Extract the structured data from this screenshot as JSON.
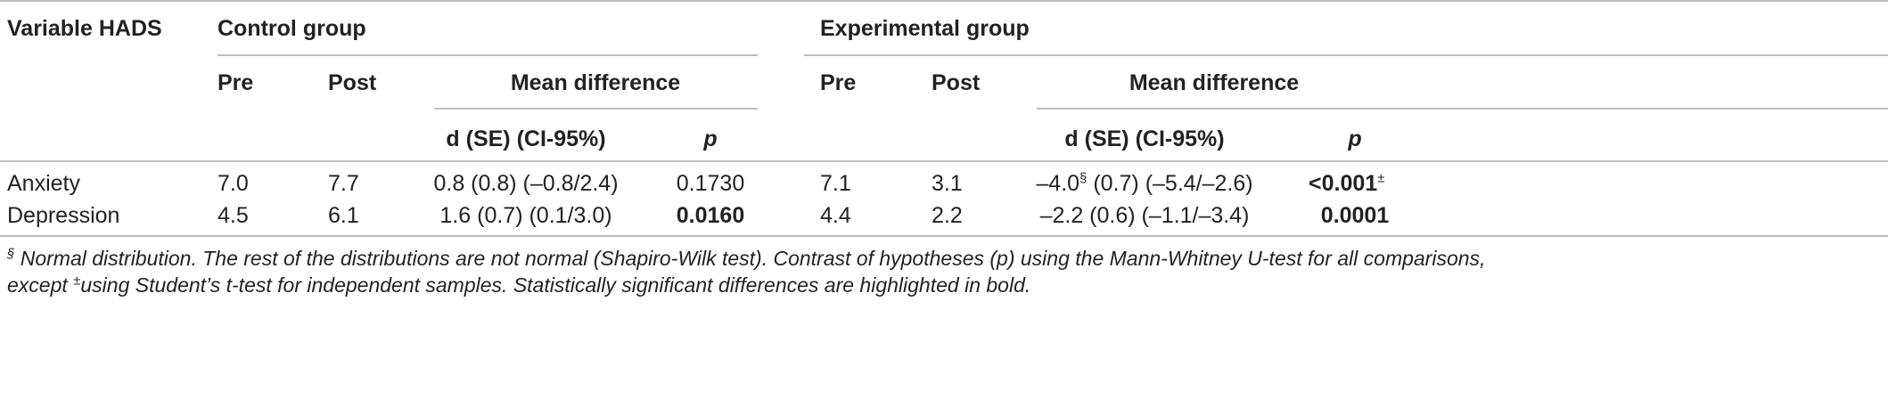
{
  "table": {
    "header": {
      "variable": "Variable HADS",
      "control_group": "Control group",
      "experimental_group": "Experimental group",
      "pre": "Pre",
      "post": "Post",
      "mean_difference": "Mean difference",
      "d_se_ci": "d (SE) (CI-95%)",
      "p": "p"
    },
    "rows": [
      {
        "variable": "Anxiety",
        "control_pre": "7.0",
        "control_post": "7.7",
        "control_d": "0.8 (0.8) (–0.8/2.4)",
        "control_p": "0.1730",
        "exp_pre": "7.1",
        "exp_post": "3.1",
        "exp_d_value": "–4.0",
        "exp_d_mark": "§",
        "exp_d_rest": " (0.7) (–5.4/–2.6)",
        "exp_p_prefix": "<",
        "exp_p_value": "0.001",
        "exp_p_mark": "±"
      },
      {
        "variable": "Depression",
        "control_pre": "4.5",
        "control_post": "6.1",
        "control_d": "1.6 (0.7) (0.1/3.0)",
        "control_p": "0.0160",
        "exp_pre": "4.4",
        "exp_post": "2.2",
        "exp_d": "–2.2 (0.6) (–1.1/–3.4)",
        "exp_p": "0.0001"
      }
    ]
  },
  "footnote": {
    "mark_1": "§",
    "line_1": " Normal distribution. The rest of the distributions are not normal (Shapiro-Wilk test). Contrast of hypotheses (p) using the Mann-Whitney U-test for all comparisons,",
    "line_2_prefix": "except ",
    "mark_2": "±",
    "line_2": "using Student’s t-test for independent samples. Statistically significant differences are highlighted in bold."
  }
}
